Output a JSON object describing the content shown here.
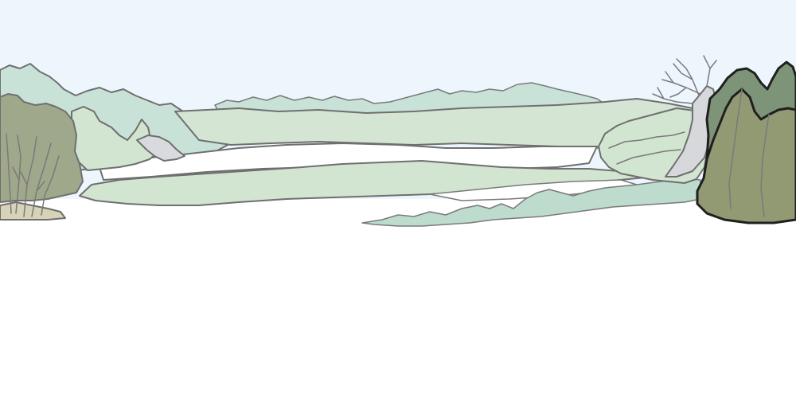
{
  "scene": {
    "colors": {
      "sky": "#eef6fd",
      "ground": "#ffffff",
      "far_hills": "#c9e2d7",
      "mid_hills": "#d4e6d3",
      "near_bands": "#d2e5d0",
      "shrubs": "#bddccd",
      "left_tree": "#9fa88a",
      "dead_tree": "#d7d8dc",
      "right_tree_back": "#7e9478",
      "right_tree_front": "#929a74",
      "rock": "#d9dadd",
      "outline": "#6f6f6f"
    }
  }
}
